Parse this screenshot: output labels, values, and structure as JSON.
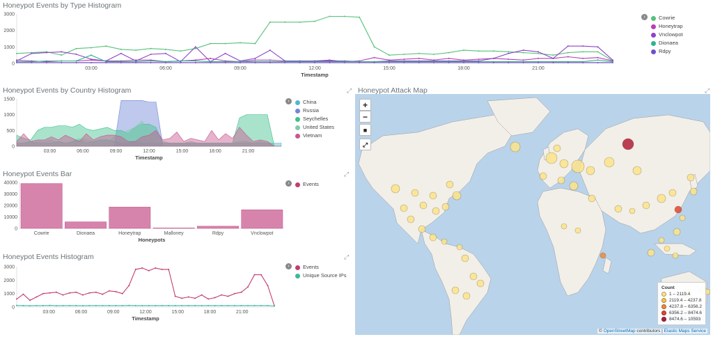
{
  "panels": {
    "type_hist": {
      "title": "Honeypot Events by Type Histogram",
      "xlabel": "Timestamp"
    },
    "country_hist": {
      "title": "Honeypot Events by Country Histogram",
      "xlabel": "Timestamp"
    },
    "bar": {
      "title": "Honeypot Events Bar",
      "xlabel": "Honeypots"
    },
    "events_hist": {
      "title": "Honeypot Events Histogram",
      "xlabel": "Timestamp"
    },
    "map": {
      "title": "Honeypot Attack Map"
    }
  },
  "icons": {
    "expand": "expand-icon",
    "toggle": "chevron-right-icon"
  },
  "chart_data": [
    {
      "type": "line",
      "title": "Honeypot Events by Type Histogram",
      "xlabel": "Timestamp",
      "xticks": [
        "03:00",
        "06:00",
        "09:00",
        "12:00",
        "15:00",
        "18:00",
        "21:00"
      ],
      "yticks": [
        "0",
        "1000",
        "2000",
        "3000"
      ],
      "ylim": [
        0,
        3000
      ],
      "legend": "right",
      "series": [
        {
          "name": "Cowrie",
          "color": "#57c17b",
          "values": [
            600,
            650,
            700,
            500,
            900,
            950,
            1050,
            850,
            800,
            900,
            850,
            750,
            900,
            1200,
            1200,
            1250,
            1200,
            2500,
            2500,
            2500,
            2550,
            2850,
            2850,
            2800,
            1000,
            500,
            550,
            600,
            550,
            650,
            800,
            750,
            750,
            700,
            650,
            600,
            500,
            650,
            700,
            700,
            150
          ]
        },
        {
          "name": "Honeytrap",
          "color": "#b93db9",
          "values": [
            200,
            150,
            100,
            150,
            150,
            200,
            150,
            150,
            200,
            200,
            100,
            150,
            200,
            300,
            150,
            100,
            200,
            200,
            150,
            150,
            150,
            200,
            100,
            150,
            350,
            200,
            250,
            300,
            200,
            300,
            200,
            250,
            300,
            250,
            200,
            300,
            300,
            400,
            300,
            350,
            150
          ]
        },
        {
          "name": "Vnclowpot",
          "color": "#8d44c7",
          "values": [
            150,
            600,
            650,
            700,
            550,
            250,
            150,
            600,
            150,
            550,
            600,
            100,
            1000,
            100,
            600,
            150,
            300,
            800,
            150,
            150,
            150,
            150,
            150,
            100,
            100,
            150,
            150,
            150,
            150,
            150,
            150,
            150,
            300,
            600,
            800,
            700,
            300,
            1050,
            1050,
            1000,
            200
          ]
        },
        {
          "name": "Dionaea",
          "color": "#2fb38e",
          "values": [
            100,
            100,
            150,
            150,
            150,
            500,
            100,
            100,
            100,
            150,
            100,
            150,
            150,
            100,
            100,
            100,
            100,
            100,
            100,
            100,
            100,
            100,
            100,
            100,
            100,
            100,
            100,
            100,
            100,
            100,
            100,
            100,
            100,
            100,
            100,
            100,
            100,
            100,
            100,
            200,
            100
          ]
        },
        {
          "name": "Rdpy",
          "color": "#6f4fc6",
          "values": [
            50,
            50,
            50,
            50,
            50,
            50,
            50,
            50,
            50,
            50,
            50,
            50,
            50,
            50,
            50,
            50,
            50,
            50,
            50,
            50,
            50,
            50,
            50,
            50,
            50,
            50,
            50,
            50,
            50,
            50,
            50,
            50,
            50,
            50,
            50,
            50,
            50,
            50,
            50,
            50,
            50
          ]
        }
      ]
    },
    {
      "type": "area",
      "title": "Honeypot Events by Country Histogram",
      "xlabel": "Timestamp",
      "xticks": [
        "03:00",
        "06:00",
        "09:00",
        "12:00",
        "15:00",
        "18:00",
        "21:00"
      ],
      "yticks": [
        "0",
        "500",
        "1000",
        "1500"
      ],
      "ylim": [
        0,
        1500
      ],
      "legend": "right",
      "series": [
        {
          "name": "China",
          "color": "#54b8c9",
          "values": [
            100,
            100,
            150,
            100,
            100,
            100,
            150,
            100,
            150,
            200,
            100,
            150,
            200,
            200,
            150,
            100,
            100,
            150,
            100,
            100,
            100,
            100,
            100,
            100,
            100,
            100,
            100,
            100,
            100,
            100,
            100,
            100,
            100,
            100,
            100,
            100,
            100,
            100,
            100
          ]
        },
        {
          "name": "Russia",
          "color": "#6f87d8",
          "values": [
            0,
            0,
            0,
            0,
            0,
            0,
            0,
            0,
            0,
            0,
            0,
            0,
            0,
            0,
            0,
            1450,
            1450,
            1450,
            1450,
            1400,
            1400,
            0,
            0,
            0,
            0,
            0,
            0,
            0,
            0,
            0,
            0,
            0,
            0,
            0,
            0,
            0,
            0,
            0,
            0
          ]
        },
        {
          "name": "Seychelles",
          "color": "#40c08f",
          "values": [
            350,
            250,
            200,
            500,
            600,
            600,
            650,
            650,
            600,
            700,
            550,
            500,
            550,
            600,
            500,
            500,
            400,
            600,
            700,
            700,
            600,
            100,
            100,
            100,
            100,
            100,
            100,
            100,
            100,
            100,
            100,
            100,
            900,
            1000,
            1000,
            1000,
            1000,
            0,
            0
          ]
        },
        {
          "name": "United States",
          "color": "#7fccac",
          "values": [
            100,
            100,
            100,
            150,
            150,
            200,
            100,
            100,
            150,
            250,
            200,
            150,
            100,
            100,
            300,
            400,
            500,
            600,
            800,
            500,
            200,
            150,
            100,
            100,
            100,
            150,
            100,
            100,
            100,
            100,
            100,
            100,
            150,
            150,
            100,
            150,
            100,
            0,
            0
          ]
        },
        {
          "name": "Vietnam",
          "color": "#c8578d",
          "values": [
            150,
            400,
            150,
            200,
            200,
            300,
            200,
            350,
            250,
            150,
            400,
            200,
            300,
            350,
            350,
            300,
            150,
            150,
            300,
            350,
            500,
            200,
            250,
            450,
            150,
            250,
            200,
            150,
            500,
            200,
            400,
            250,
            600,
            350,
            150,
            200,
            150,
            0,
            0
          ]
        }
      ]
    },
    {
      "type": "bar",
      "title": "Honeypot Events Bar",
      "xlabel": "Honeypots",
      "categories": [
        "Cowrie",
        "Dionaea",
        "Honeytrap",
        "Malloney",
        "Rdpy",
        "Vnclowpot"
      ],
      "values": [
        41000,
        6000,
        19500,
        400,
        2000,
        17000
      ],
      "yticks": [
        "0",
        "10000",
        "20000",
        "30000",
        "40000"
      ],
      "ylim": [
        0,
        42000
      ],
      "legend": "right",
      "series_name": "Events",
      "color": "#cf6f9d"
    },
    {
      "type": "line",
      "title": "Honeypot Events Histogram",
      "xlabel": "Timestamp",
      "xticks": [
        "03:00",
        "06:00",
        "09:00",
        "12:00",
        "15:00",
        "18:00",
        "21:00"
      ],
      "yticks": [
        "0",
        "1000",
        "2000",
        "3000"
      ],
      "ylim": [
        0,
        3000
      ],
      "legend": "right",
      "series": [
        {
          "name": "Events",
          "color": "#c23d72",
          "values": [
            600,
            950,
            500,
            750,
            1000,
            1050,
            1100,
            900,
            1050,
            1100,
            900,
            1050,
            1100,
            950,
            1200,
            1150,
            1000,
            1600,
            2800,
            2900,
            2700,
            2900,
            2800,
            2800,
            800,
            650,
            750,
            650,
            900,
            600,
            700,
            900,
            800,
            1000,
            1100,
            1500,
            2400,
            2400,
            1600,
            100
          ]
        },
        {
          "name": "Unique Source IPs",
          "color": "#3cb89b",
          "values": [
            120,
            110,
            100,
            110,
            110,
            120,
            100,
            110,
            110,
            110,
            100,
            110,
            110,
            110,
            110,
            110,
            110,
            120,
            110,
            110,
            110,
            110,
            110,
            110,
            110,
            110,
            110,
            110,
            110,
            110,
            110,
            110,
            110,
            110,
            110,
            110,
            110,
            110,
            110,
            80
          ]
        }
      ]
    }
  ],
  "map": {
    "controls": {
      "zoom_in": "+",
      "zoom_out": "−",
      "draw": "■",
      "fit": "⤢"
    },
    "legend": {
      "title": "Count",
      "ranges": [
        {
          "label": "1 – 2119.4",
          "color": "#fbe38a"
        },
        {
          "label": "2119.4 – 4237.8",
          "color": "#f5c34e"
        },
        {
          "label": "4237.8 – 6356.2",
          "color": "#ee8a3a"
        },
        {
          "label": "6356.2 – 8474.6",
          "color": "#e1462f"
        },
        {
          "label": "8474.6 – 10593",
          "color": "#b11f37"
        }
      ]
    },
    "attribution": {
      "prefix": "© ",
      "osm": "OpenStreetMap",
      "mid": " contributors | ",
      "ems": "Elastic Maps Service"
    }
  }
}
